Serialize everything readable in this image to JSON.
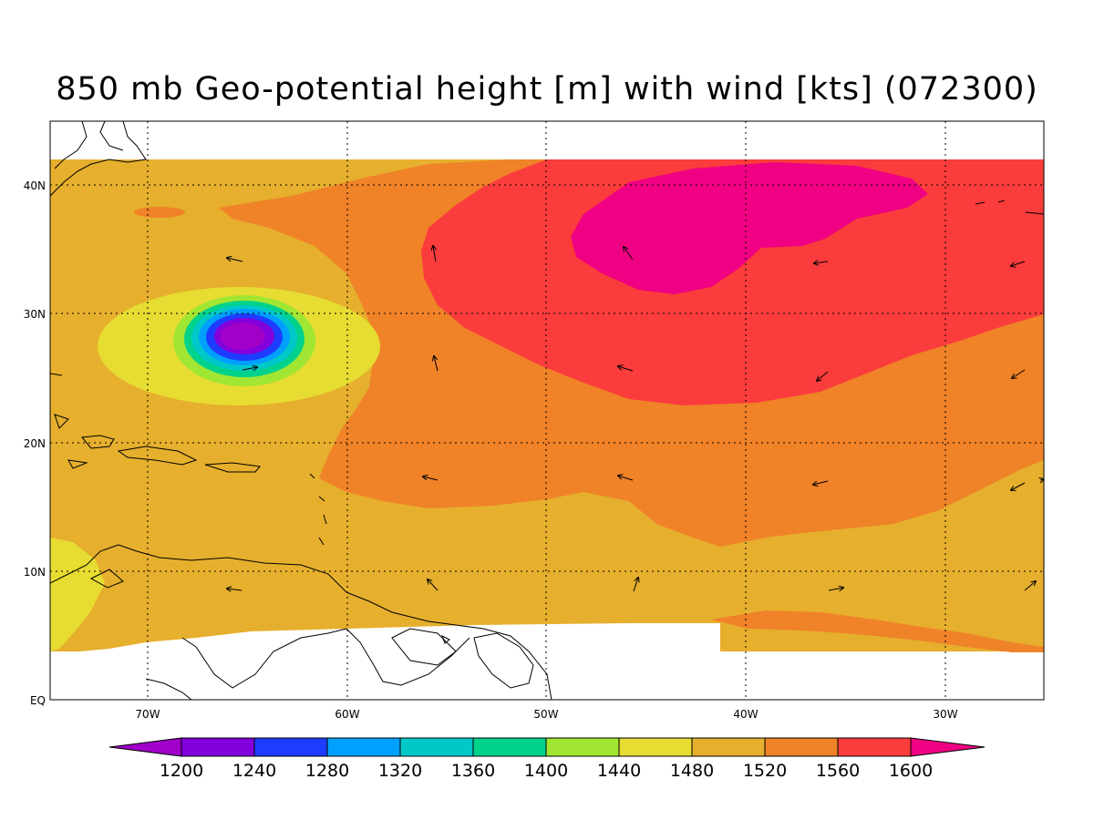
{
  "title": "850 mb Geo-potential height [m] with wind [kts] (072300)",
  "map": {
    "lon_ticks": [
      "70W",
      "60W",
      "50W",
      "40W",
      "30W"
    ],
    "lat_ticks": [
      "40N",
      "30N",
      "20N",
      "10N",
      "EQ"
    ],
    "colors": {
      "c1200": "#a000c8",
      "c1240": "#8200dc",
      "c1280": "#1e3cff",
      "c1320": "#00a0ff",
      "c1360": "#00c8c8",
      "c1400": "#00d28c",
      "c1440": "#a0e632",
      "c1480": "#e6dc32",
      "c1520": "#e6af2d",
      "c1560": "#f08228",
      "c1600": "#fa3c3c",
      "c1600plus": "#f00082"
    }
  },
  "colorbar": {
    "labels": [
      "1200",
      "1240",
      "1280",
      "1320",
      "1360",
      "1400",
      "1440",
      "1480",
      "1520",
      "1560",
      "1600"
    ]
  }
}
